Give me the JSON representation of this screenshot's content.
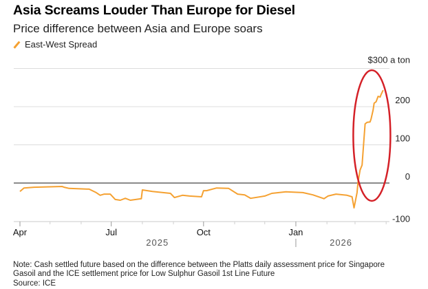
{
  "chart_data": {
    "type": "line",
    "title": "Asia Screams Louder Than Europe for Diesel",
    "subtitle": "Price difference between Asia and Europe soars",
    "y_unit_label": "$300 a ton",
    "ylim": [
      -100,
      300
    ],
    "yticks": [
      {
        "value": 300,
        "label": "$300 a ton"
      },
      {
        "value": 200,
        "label": "200"
      },
      {
        "value": 100,
        "label": "100"
      },
      {
        "value": 0,
        "label": "0"
      },
      {
        "value": -100,
        "label": "-100"
      }
    ],
    "xlim": [
      "2025-04-01",
      "2026-04-01"
    ],
    "xticks": [
      {
        "date": "2025-04-01",
        "label": "Apr"
      },
      {
        "date": "2025-07-01",
        "label": "Jul"
      },
      {
        "date": "2025-10-01",
        "label": "Oct"
      },
      {
        "date": "2026-01-01",
        "label": "Jan"
      }
    ],
    "minor_ticks": [
      "2025-05-01",
      "2025-06-01",
      "2025-08-01",
      "2025-09-01",
      "2025-11-01",
      "2025-12-01",
      "2026-02-01",
      "2026-03-01",
      "2026-04-01"
    ],
    "year_labels": [
      {
        "label": "2025",
        "center": "2025-08-16"
      },
      {
        "label": "2026",
        "center": "2026-02-15"
      }
    ],
    "grid": true,
    "legend_placement": "top-left",
    "series": [
      {
        "name": "East-West Spread",
        "color": "#f5a131",
        "points": [
          [
            "2025-04-01",
            -22
          ],
          [
            "2025-04-05",
            -13
          ],
          [
            "2025-04-15",
            -11
          ],
          [
            "2025-05-13",
            -9
          ],
          [
            "2025-05-15",
            -11
          ],
          [
            "2025-05-20",
            -14
          ],
          [
            "2025-06-09",
            -16
          ],
          [
            "2025-06-16",
            -25
          ],
          [
            "2025-06-20",
            -32
          ],
          [
            "2025-06-24",
            -29
          ],
          [
            "2025-06-30",
            -29
          ],
          [
            "2025-07-05",
            -43
          ],
          [
            "2025-07-10",
            -45
          ],
          [
            "2025-07-15",
            -40
          ],
          [
            "2025-07-20",
            -45
          ],
          [
            "2025-07-31",
            -41
          ],
          [
            "2025-08-01",
            -18
          ],
          [
            "2025-08-11",
            -22
          ],
          [
            "2025-08-29",
            -27
          ],
          [
            "2025-09-02",
            -38
          ],
          [
            "2025-09-10",
            -32
          ],
          [
            "2025-09-17",
            -34
          ],
          [
            "2025-09-29",
            -36
          ],
          [
            "2025-10-01",
            -20
          ],
          [
            "2025-10-04",
            -20
          ],
          [
            "2025-10-14",
            -13
          ],
          [
            "2025-10-26",
            -14
          ],
          [
            "2025-11-04",
            -29
          ],
          [
            "2025-11-11",
            -31
          ],
          [
            "2025-11-17",
            -40
          ],
          [
            "2025-12-01",
            -34
          ],
          [
            "2025-12-08",
            -27
          ],
          [
            "2025-12-22",
            -23
          ],
          [
            "2026-01-08",
            -25
          ],
          [
            "2026-01-18",
            -31
          ],
          [
            "2026-01-28",
            -40
          ],
          [
            "2026-01-29",
            -41
          ],
          [
            "2026-02-02",
            -34
          ],
          [
            "2026-02-10",
            -29
          ],
          [
            "2026-02-21",
            -32
          ],
          [
            "2026-02-26",
            -36
          ],
          [
            "2026-02-28",
            -65
          ],
          [
            "2026-03-03",
            -25
          ],
          [
            "2026-03-04",
            2
          ],
          [
            "2026-03-06",
            34
          ],
          [
            "2026-03-08",
            47
          ],
          [
            "2026-03-10",
            119
          ],
          [
            "2026-03-11",
            155
          ],
          [
            "2026-03-13",
            159
          ],
          [
            "2026-03-16",
            160
          ],
          [
            "2026-03-17",
            168
          ],
          [
            "2026-03-19",
            191
          ],
          [
            "2026-03-20",
            209
          ],
          [
            "2026-03-22",
            213
          ],
          [
            "2026-03-24",
            227
          ],
          [
            "2026-03-26",
            225
          ],
          [
            "2026-03-27",
            232
          ],
          [
            "2026-03-29",
            243
          ]
        ]
      }
    ],
    "annotation": {
      "type": "ellipse",
      "color": "#d42027",
      "from": "2026-02-26",
      "to": "2026-04-01"
    }
  },
  "notes": {
    "line1": "Note: Cash settled future based on the difference between the Platts daily assessment price for Singapore",
    "line2": "Gasoil and the ICE settlement price for Low Sulphur Gasoil 1st Line Future",
    "source": "Source: ICE"
  }
}
